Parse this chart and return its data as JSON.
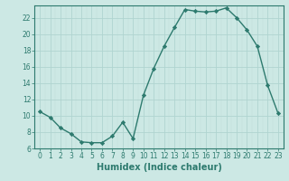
{
  "x": [
    0,
    1,
    2,
    3,
    4,
    5,
    6,
    7,
    8,
    9,
    10,
    11,
    12,
    13,
    14,
    15,
    16,
    17,
    18,
    19,
    20,
    21,
    22,
    23
  ],
  "y": [
    10.5,
    9.8,
    8.5,
    7.8,
    6.8,
    6.7,
    6.7,
    7.5,
    9.2,
    7.2,
    12.5,
    15.8,
    18.5,
    20.8,
    23.0,
    22.8,
    22.7,
    22.8,
    23.2,
    22.0,
    20.5,
    18.5,
    13.7,
    10.3
  ],
  "line_color": "#2d7a6e",
  "marker": "D",
  "marker_size": 2.2,
  "bg_color": "#cce8e4",
  "grid_major_color": "#b0d4d0",
  "grid_minor_color": "#c0deda",
  "xlabel": "Humidex (Indice chaleur)",
  "xlim": [
    -0.5,
    23.5
  ],
  "ylim": [
    6,
    23.5
  ],
  "yticks": [
    6,
    8,
    10,
    12,
    14,
    16,
    18,
    20,
    22
  ],
  "xticks": [
    0,
    1,
    2,
    3,
    4,
    5,
    6,
    7,
    8,
    9,
    10,
    11,
    12,
    13,
    14,
    15,
    16,
    17,
    18,
    19,
    20,
    21,
    22,
    23
  ],
  "tick_fontsize": 5.5,
  "label_fontsize": 7.0,
  "line_width": 1.0,
  "axis_color": "#2d7a6e",
  "spine_color": "#2d7a6e"
}
